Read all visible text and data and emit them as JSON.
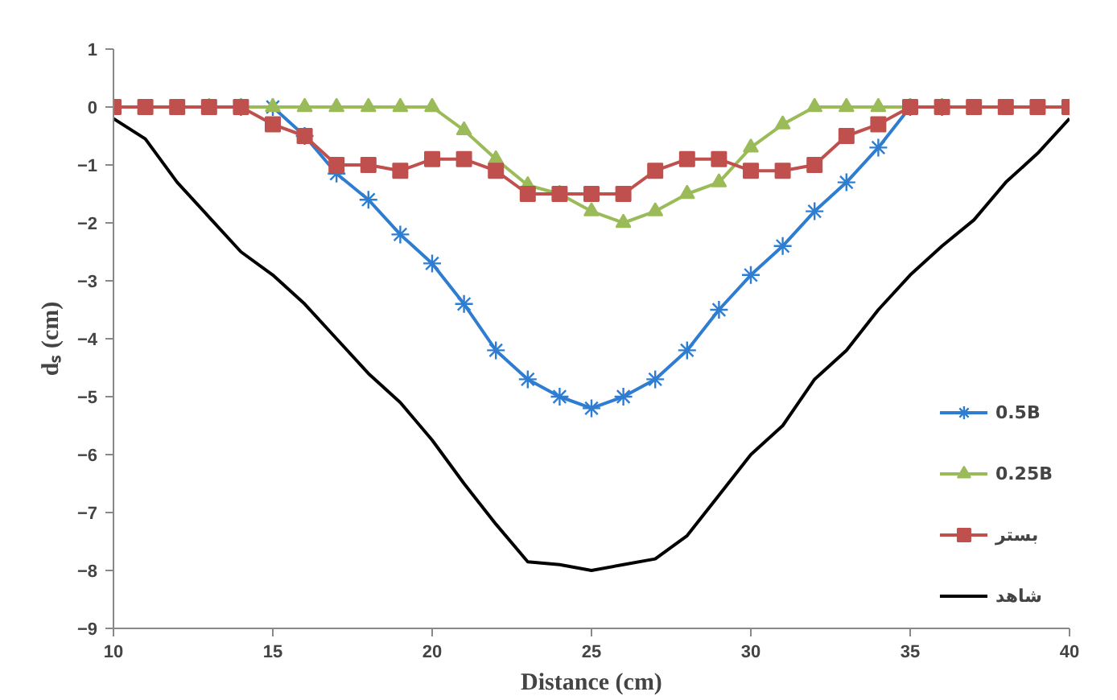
{
  "chart_data": {
    "type": "line",
    "xlabel": "Distance (cm)",
    "ylabel": "dₛ (cm)",
    "x": [
      10,
      11,
      12,
      13,
      14,
      15,
      16,
      17,
      18,
      19,
      20,
      21,
      22,
      23,
      24,
      25,
      26,
      27,
      28,
      29,
      30,
      31,
      32,
      33,
      34,
      35,
      36,
      37,
      38,
      39,
      40
    ],
    "xlim": [
      10,
      40
    ],
    "xticks": [
      10,
      15,
      20,
      25,
      30,
      35,
      40
    ],
    "ylim": [
      -9,
      1
    ],
    "yticks": [
      -9,
      -8,
      -7,
      -6,
      -5,
      -4,
      -3,
      -2,
      -1,
      0,
      1
    ],
    "grid": false,
    "legend": "bottom right",
    "series": [
      {
        "name": "0.5B",
        "color": "#2e7dd1",
        "marker": "cross",
        "values": [
          null,
          null,
          null,
          null,
          0,
          0,
          -0.5,
          -1.15,
          -1.6,
          -2.2,
          -2.7,
          -3.4,
          -4.2,
          -4.7,
          -5.0,
          -5.2,
          -5.0,
          -4.7,
          -4.2,
          -3.5,
          -2.9,
          -2.4,
          -1.8,
          -1.3,
          -0.7,
          0,
          0,
          null,
          null,
          null,
          null
        ]
      },
      {
        "name": "0.25B",
        "color": "#9bbb59",
        "marker": "triangle",
        "values": [
          null,
          null,
          null,
          0,
          0,
          0,
          0,
          0,
          0,
          0,
          0,
          -0.4,
          -0.9,
          -1.35,
          -1.5,
          -1.8,
          -2.0,
          -1.8,
          -1.5,
          -1.3,
          -0.7,
          -0.3,
          0,
          0,
          0,
          0,
          0,
          null,
          null,
          null,
          null
        ]
      },
      {
        "name": "بستر",
        "color": "#c0504d",
        "marker": "square",
        "values": [
          0,
          0,
          0,
          0,
          0,
          -0.3,
          -0.5,
          -1.0,
          -1.0,
          -1.1,
          -0.9,
          -0.9,
          -1.1,
          -1.5,
          -1.5,
          -1.5,
          -1.5,
          -1.1,
          -0.9,
          -0.9,
          -1.1,
          -1.1,
          -1.0,
          -0.5,
          -0.3,
          0,
          0,
          0,
          0,
          0,
          0
        ]
      },
      {
        "name": "شاهد",
        "color": "#000000",
        "marker": "none",
        "values": [
          -0.2,
          -0.55,
          -1.3,
          -1.9,
          -2.5,
          -2.9,
          -3.4,
          -4.0,
          -4.6,
          -5.1,
          -5.75,
          -6.5,
          -7.2,
          -7.85,
          -7.9,
          -8.0,
          -7.9,
          -7.8,
          -7.4,
          -6.7,
          -6.0,
          -5.5,
          -4.7,
          -4.2,
          -3.5,
          -2.9,
          -2.4,
          -1.95,
          -1.3,
          -0.8,
          -0.2
        ]
      }
    ]
  }
}
